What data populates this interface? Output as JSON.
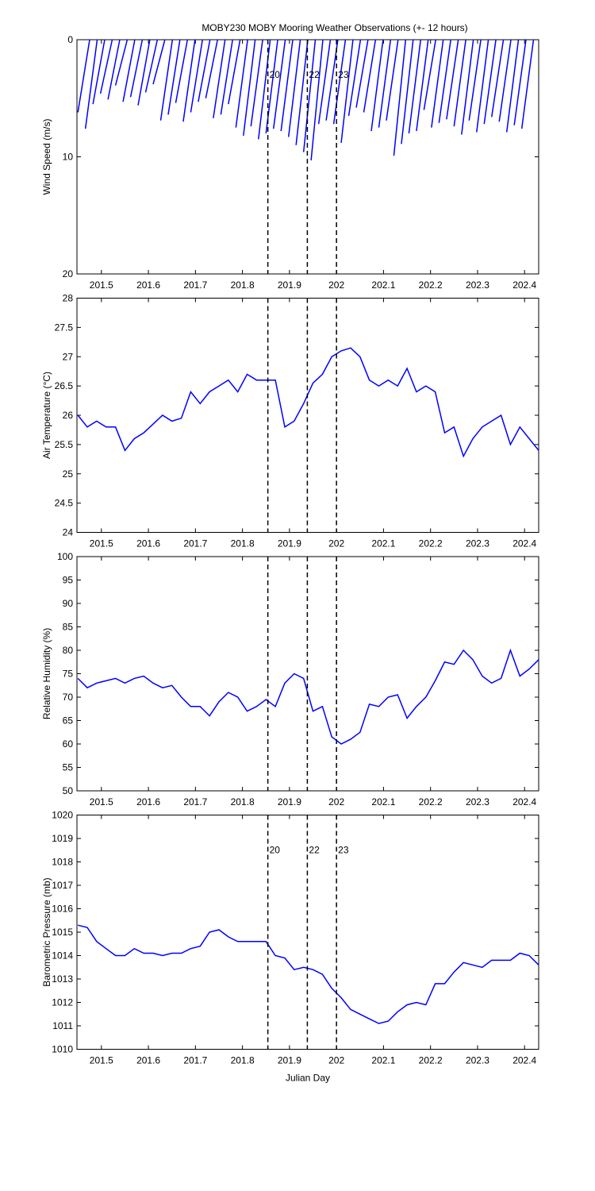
{
  "chart_data": [
    {
      "type": "stick",
      "title": "MOBY230 MOBY Mooring Weather Observations (+- 12 hours)",
      "ylabel": "Wind Speed (m/s)",
      "color": "#0000ff",
      "xlim": [
        201.448,
        202.43
      ],
      "xticks": [
        201.5,
        201.6,
        201.7,
        201.8,
        201.9,
        202,
        202.1,
        202.2,
        202.3,
        202.4
      ],
      "ylim": [
        0,
        20
      ],
      "yticks": [
        0,
        10,
        20
      ],
      "y_reversed": true,
      "x": [
        201.475,
        201.491,
        201.507,
        201.523,
        201.539,
        201.555,
        201.571,
        201.587,
        201.603,
        201.619,
        201.635,
        201.651,
        201.667,
        201.683,
        201.699,
        201.715,
        201.731,
        201.747,
        201.763,
        201.779,
        201.795,
        201.811,
        201.827,
        201.843,
        201.859,
        201.875,
        201.891,
        201.907,
        201.923,
        201.939,
        201.955,
        201.971,
        201.987,
        202.003,
        202.019,
        202.035,
        202.051,
        202.067,
        202.083,
        202.099,
        202.115,
        202.131,
        202.147,
        202.163,
        202.179,
        202.195,
        202.211,
        202.227,
        202.243,
        202.259,
        202.275,
        202.291,
        202.307,
        202.323,
        202.339,
        202.355,
        202.371,
        202.387,
        202.403,
        202.419
      ],
      "x_end": [
        201.45,
        201.466,
        201.482,
        201.498,
        201.514,
        201.53,
        201.546,
        201.562,
        201.578,
        201.594,
        201.61,
        201.626,
        201.642,
        201.658,
        201.674,
        201.69,
        201.706,
        201.722,
        201.738,
        201.754,
        201.77,
        201.786,
        201.802,
        201.818,
        201.834,
        201.85,
        201.866,
        201.882,
        201.898,
        201.914,
        201.93,
        201.946,
        201.962,
        201.978,
        201.994,
        202.01,
        202.026,
        202.042,
        202.058,
        202.074,
        202.09,
        202.106,
        202.122,
        202.138,
        202.154,
        202.17,
        202.186,
        202.202,
        202.218,
        202.234,
        202.25,
        202.266,
        202.282,
        202.298,
        202.314,
        202.33,
        202.346,
        202.362,
        202.378,
        202.394
      ],
      "values": [
        6.2,
        7.6,
        5.5,
        4.6,
        5.1,
        3.9,
        5.3,
        4.9,
        5.6,
        4.5,
        3.8,
        6.9,
        6.4,
        5.4,
        7.0,
        6.2,
        5.3,
        5.0,
        6.7,
        6.4,
        5.5,
        7.5,
        8.2,
        7.4,
        8.5,
        8.0,
        7.6,
        7.8,
        8.3,
        9.0,
        9.6,
        10.3,
        7.2,
        6.9,
        7.2,
        8.8,
        6.5,
        5.8,
        6.2,
        7.8,
        7.5,
        6.9,
        9.9,
        8.9,
        8.0,
        7.8,
        6.0,
        7.5,
        7.1,
        6.8,
        7.4,
        8.1,
        6.9,
        7.9,
        7.2,
        6.6,
        7.0,
        7.9,
        7.3,
        7.6
      ],
      "vlines": [
        {
          "x": 201.854,
          "label": "20"
        },
        {
          "x": 201.938,
          "label": "22"
        },
        {
          "x": 202.0,
          "label": "23"
        }
      ],
      "vline_label_color": "#cc2222"
    },
    {
      "type": "line",
      "ylabel": "Air Temperature (°C)",
      "color": "#0000ff",
      "xlim": [
        201.448,
        202.43
      ],
      "xticks": [
        201.5,
        201.6,
        201.7,
        201.8,
        201.9,
        202,
        202.1,
        202.2,
        202.3,
        202.4
      ],
      "ylim": [
        24,
        28
      ],
      "yticks": [
        24,
        24.5,
        25,
        25.5,
        26,
        26.5,
        27,
        27.5,
        28
      ],
      "x": [
        201.45,
        201.47,
        201.49,
        201.51,
        201.53,
        201.55,
        201.57,
        201.59,
        201.61,
        201.63,
        201.65,
        201.67,
        201.69,
        201.71,
        201.73,
        201.75,
        201.77,
        201.79,
        201.81,
        201.83,
        201.85,
        201.87,
        201.89,
        201.91,
        201.93,
        201.95,
        201.97,
        201.99,
        202.01,
        202.03,
        202.05,
        202.07,
        202.09,
        202.11,
        202.13,
        202.15,
        202.17,
        202.19,
        202.21,
        202.23,
        202.25,
        202.27,
        202.29,
        202.31,
        202.33,
        202.35,
        202.37,
        202.39,
        202.41,
        202.43
      ],
      "values": [
        26.0,
        25.8,
        25.9,
        25.8,
        25.8,
        25.4,
        25.6,
        25.7,
        25.85,
        26.0,
        25.9,
        25.95,
        26.4,
        26.2,
        26.4,
        26.5,
        26.6,
        26.4,
        26.7,
        26.6,
        26.6,
        26.6,
        25.8,
        25.9,
        26.2,
        26.55,
        26.7,
        27.0,
        27.1,
        27.15,
        27.0,
        26.6,
        26.5,
        26.6,
        26.5,
        26.8,
        26.4,
        26.5,
        26.4,
        25.7,
        25.8,
        25.3,
        25.6,
        25.8,
        25.9,
        26.0,
        25.5,
        25.8,
        25.6,
        25.4
      ],
      "vlines": [
        {
          "x": 201.854
        },
        {
          "x": 201.938
        },
        {
          "x": 202.0
        }
      ]
    },
    {
      "type": "line",
      "ylabel": "Relative Humidity (%)",
      "color": "#0000ff",
      "xlim": [
        201.448,
        202.43
      ],
      "xticks": [
        201.5,
        201.6,
        201.7,
        201.8,
        201.9,
        202,
        202.1,
        202.2,
        202.3,
        202.4
      ],
      "ylim": [
        50,
        100
      ],
      "yticks": [
        50,
        55,
        60,
        65,
        70,
        75,
        80,
        85,
        90,
        95,
        100
      ],
      "x": [
        201.45,
        201.47,
        201.49,
        201.51,
        201.53,
        201.55,
        201.57,
        201.59,
        201.61,
        201.63,
        201.65,
        201.67,
        201.69,
        201.71,
        201.73,
        201.75,
        201.77,
        201.79,
        201.81,
        201.83,
        201.85,
        201.87,
        201.89,
        201.91,
        201.93,
        201.95,
        201.97,
        201.99,
        202.01,
        202.03,
        202.05,
        202.07,
        202.09,
        202.11,
        202.13,
        202.15,
        202.17,
        202.19,
        202.21,
        202.23,
        202.25,
        202.27,
        202.29,
        202.31,
        202.33,
        202.35,
        202.37,
        202.39,
        202.41,
        202.43
      ],
      "values": [
        74,
        72,
        73,
        73.5,
        74,
        73,
        74,
        74.5,
        73,
        72,
        72.5,
        70,
        68,
        68,
        66,
        69,
        71,
        70,
        67,
        68,
        69.5,
        68,
        73,
        75,
        74,
        67,
        68,
        61.5,
        60,
        61,
        62.5,
        68.5,
        68,
        70,
        70.5,
        65.5,
        68,
        70,
        73.5,
        77.5,
        77,
        80,
        78,
        74.5,
        73,
        74,
        80,
        74.5,
        76,
        78
      ],
      "vlines": [
        {
          "x": 201.854
        },
        {
          "x": 201.938
        },
        {
          "x": 202.0
        }
      ]
    },
    {
      "type": "line",
      "ylabel": "Barometric Pressure (mb)",
      "xlabel": "Julian Day",
      "color": "#0000ff",
      "xlim": [
        201.448,
        202.43
      ],
      "xticks": [
        201.5,
        201.6,
        201.7,
        201.8,
        201.9,
        202,
        202.1,
        202.2,
        202.3,
        202.4
      ],
      "ylim": [
        1010,
        1020
      ],
      "yticks": [
        1010,
        1011,
        1012,
        1013,
        1014,
        1015,
        1016,
        1017,
        1018,
        1019,
        1020
      ],
      "x": [
        201.45,
        201.47,
        201.49,
        201.51,
        201.53,
        201.55,
        201.57,
        201.59,
        201.61,
        201.63,
        201.65,
        201.67,
        201.69,
        201.71,
        201.73,
        201.75,
        201.77,
        201.79,
        201.81,
        201.83,
        201.85,
        201.87,
        201.89,
        201.91,
        201.93,
        201.95,
        201.97,
        201.99,
        202.01,
        202.03,
        202.05,
        202.07,
        202.09,
        202.11,
        202.13,
        202.15,
        202.17,
        202.19,
        202.21,
        202.23,
        202.25,
        202.27,
        202.29,
        202.31,
        202.33,
        202.35,
        202.37,
        202.39,
        202.41,
        202.43
      ],
      "values": [
        1015.3,
        1015.2,
        1014.6,
        1014.3,
        1014.0,
        1014.0,
        1014.3,
        1014.1,
        1014.1,
        1014.0,
        1014.1,
        1014.1,
        1014.3,
        1014.4,
        1015.0,
        1015.1,
        1014.8,
        1014.6,
        1014.6,
        1014.6,
        1014.6,
        1014.0,
        1013.9,
        1013.4,
        1013.5,
        1013.4,
        1013.2,
        1012.6,
        1012.2,
        1011.7,
        1011.5,
        1011.3,
        1011.1,
        1011.2,
        1011.6,
        1011.9,
        1012.0,
        1011.9,
        1012.8,
        1012.8,
        1013.3,
        1013.7,
        1013.6,
        1013.5,
        1013.8,
        1013.8,
        1013.8,
        1014.1,
        1014.0,
        1013.6
      ],
      "vlines": [
        {
          "x": 201.854,
          "label": "20"
        },
        {
          "x": 201.938,
          "label": "22"
        },
        {
          "x": 202.0,
          "label": "23"
        }
      ],
      "vline_label_color": "#cc2222"
    }
  ]
}
